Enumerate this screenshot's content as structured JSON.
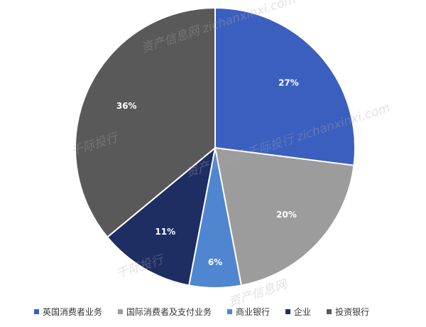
{
  "chart_data": {
    "type": "pie",
    "categories": [
      "英国消费者业务",
      "国际消费者及支付业务",
      "商业银行",
      "企业",
      "投资银行"
    ],
    "values": [
      27,
      20,
      6,
      11,
      36
    ],
    "labels": [
      "27%",
      "20%",
      "6%",
      "11%",
      "36%"
    ],
    "colors": [
      "#3a5fbf",
      "#9c9c9c",
      "#4f86cf",
      "#1e2e63",
      "#595959"
    ],
    "legend_position": "bottom"
  },
  "watermarks": {
    "w1": "资产信息网 zichanxinxi.com",
    "w2": "资产信息网 千际投行 zichanxinxi.com",
    "w3": "千际投行",
    "w4": "千际投行",
    "w5": "资产信息网"
  }
}
